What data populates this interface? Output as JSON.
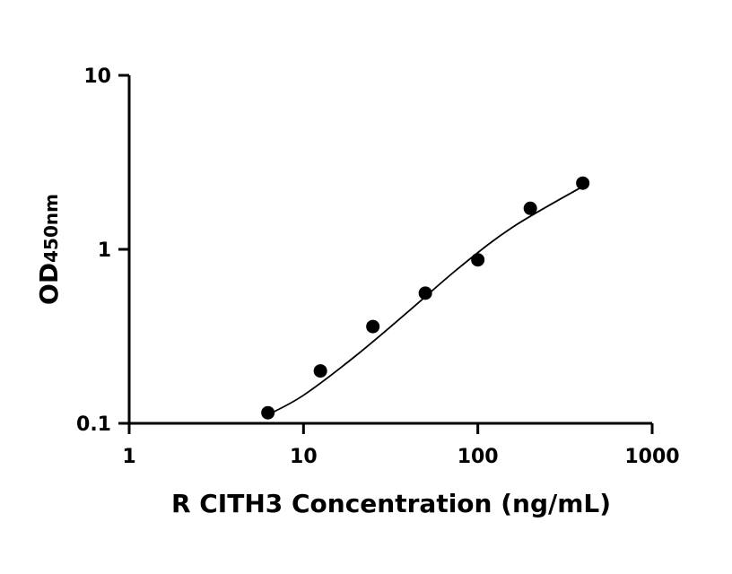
{
  "chart_data": {
    "type": "scatter",
    "x_scale": "log",
    "y_scale": "log",
    "xlim": [
      1,
      1000
    ],
    "ylim": [
      0.1,
      10
    ],
    "x_ticks": [
      {
        "value": 1,
        "label": "1"
      },
      {
        "value": 10,
        "label": "10"
      },
      {
        "value": 100,
        "label": "100"
      },
      {
        "value": 1000,
        "label": "1000"
      }
    ],
    "y_ticks": [
      {
        "value": 0.1,
        "label": "0.1"
      },
      {
        "value": 1,
        "label": "1"
      },
      {
        "value": 10,
        "label": "10"
      }
    ],
    "xlabel": "R CITH3 Concentration (ng/mL)",
    "ylabel_main": "OD",
    "ylabel_sub": "450nm",
    "grid": false,
    "series": [
      {
        "points": [
          {
            "x": 6.25,
            "y": 0.115
          },
          {
            "x": 12.5,
            "y": 0.2
          },
          {
            "x": 25,
            "y": 0.36
          },
          {
            "x": 50,
            "y": 0.56
          },
          {
            "x": 100,
            "y": 0.87
          },
          {
            "x": 200,
            "y": 1.72
          },
          {
            "x": 400,
            "y": 2.4
          }
        ]
      }
    ],
    "fit_curve": {
      "x_range": [
        6.25,
        400
      ],
      "points": [
        {
          "x": 6.25,
          "y": 0.112
        },
        {
          "x": 10,
          "y": 0.145
        },
        {
          "x": 20,
          "y": 0.245
        },
        {
          "x": 40,
          "y": 0.44
        },
        {
          "x": 80,
          "y": 0.8
        },
        {
          "x": 160,
          "y": 1.35
        },
        {
          "x": 400,
          "y": 2.3
        }
      ]
    }
  }
}
